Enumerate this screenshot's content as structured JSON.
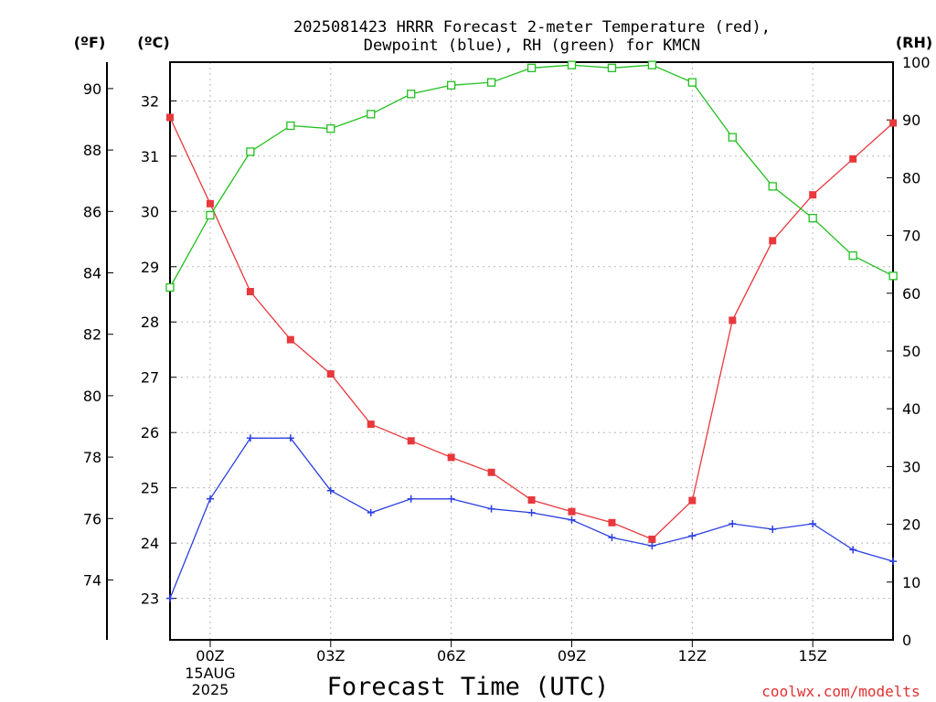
{
  "chart_data": {
    "type": "line",
    "title_line1": "2025081423 HRRR Forecast 2-meter Temperature (red),",
    "title_line2": "Dewpoint (blue), RH (green) for KMCN",
    "xlabel": "Forecast Time (UTC)",
    "credit": "coolwx.com/modelts",
    "unit_labels": {
      "f": "(ºF)",
      "c": "(ºC)",
      "rh": "(RH)"
    },
    "x": [
      "23Z",
      "00Z",
      "01Z",
      "02Z",
      "03Z",
      "04Z",
      "05Z",
      "06Z",
      "07Z",
      "08Z",
      "09Z",
      "10Z",
      "11Z",
      "12Z",
      "13Z",
      "14Z",
      "15Z",
      "16Z",
      "17Z"
    ],
    "x_ticks": [
      {
        "label": "00Z",
        "sub": [
          "15AUG",
          "2025"
        ]
      },
      {
        "label": "03Z"
      },
      {
        "label": "06Z"
      },
      {
        "label": "09Z"
      },
      {
        "label": "12Z"
      },
      {
        "label": "15Z"
      }
    ],
    "axes": {
      "left_f": {
        "label": "ºF",
        "ticks": [
          74,
          76,
          78,
          80,
          82,
          84,
          86,
          88,
          90
        ]
      },
      "left_c": {
        "label": "ºC",
        "ticks": [
          23,
          24,
          25,
          26,
          27,
          28,
          29,
          30,
          31,
          32
        ],
        "ylim": [
          22.25,
          32.7
        ]
      },
      "right_rh": {
        "label": "RH",
        "ticks": [
          0,
          10,
          20,
          30,
          40,
          50,
          60,
          70,
          80,
          90,
          100
        ],
        "ylim": [
          0,
          100
        ]
      }
    },
    "grid": true,
    "series": [
      {
        "name": "Temperature",
        "color": "#e8383c",
        "axis": "celsius",
        "marker": "filled-square",
        "values": [
          31.7,
          30.14,
          28.55,
          27.68,
          27.06,
          26.15,
          25.85,
          25.55,
          25.28,
          24.78,
          24.57,
          24.37,
          24.07,
          24.77,
          28.03,
          29.47,
          30.3,
          30.95,
          31.6
        ]
      },
      {
        "name": "Dewpoint",
        "color": "#2b3fe0",
        "axis": "celsius",
        "marker": "plus",
        "values": [
          23.0,
          24.8,
          25.9,
          25.9,
          24.95,
          24.55,
          24.8,
          24.8,
          24.62,
          24.55,
          24.42,
          24.1,
          23.95,
          24.13,
          24.35,
          24.25,
          24.35,
          23.88,
          23.67
        ]
      },
      {
        "name": "RH",
        "color": "#22c01f",
        "axis": "rh",
        "marker": "open-square",
        "values": [
          61,
          73.5,
          84.5,
          89,
          88.5,
          91,
          94.5,
          96,
          96.5,
          99,
          99.5,
          99,
          99.5,
          96.5,
          87,
          78.5,
          73,
          66.5,
          63
        ]
      }
    ]
  }
}
